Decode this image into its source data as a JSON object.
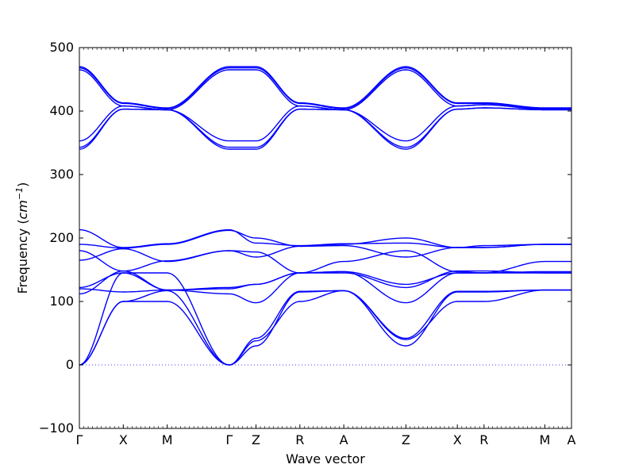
{
  "chart_data": {
    "type": "line",
    "title": "",
    "xlabel": "Wave vector",
    "ylabel_prefix": "Frequency (",
    "ylabel_unit_base": "cm",
    "ylabel_unit_exp": "−1",
    "ylabel_suffix": ")",
    "ylim": [
      -100,
      500
    ],
    "yticks": [
      -100,
      0,
      100,
      200,
      300,
      400,
      500
    ],
    "ytick_labels": [
      "−100",
      "0",
      "100",
      "200",
      "300",
      "400",
      "500"
    ],
    "qpoints": [
      {
        "label": "Γ",
        "x": 0.0
      },
      {
        "label": "X",
        "x": 0.5
      },
      {
        "label": "M",
        "x": 1.0
      },
      {
        "label": "Γ",
        "x": 1.707
      },
      {
        "label": "Z",
        "x": 2.011
      },
      {
        "label": "R",
        "x": 2.511
      },
      {
        "label": "A",
        "x": 3.011
      },
      {
        "label": "Z",
        "x": 3.718
      },
      {
        "label": "X",
        "x": 4.304
      },
      {
        "label": "R",
        "x": 4.608
      },
      {
        "label": "M",
        "x": 5.3
      },
      {
        "label": "A",
        "x": 5.604
      }
    ],
    "zero_line": true,
    "series": [
      {
        "values": [
          0,
          100,
          100,
          0,
          38,
          100,
          117,
          40,
          100,
          100,
          118,
          118
        ]
      },
      {
        "values": [
          0,
          100,
          117,
          0,
          30,
          115,
          117,
          30,
          115,
          115,
          118,
          118
        ]
      },
      {
        "values": [
          0,
          145,
          145,
          0,
          42,
          116,
          117,
          42,
          116,
          116,
          118,
          118
        ]
      },
      {
        "values": [
          112,
          148,
          118,
          112,
          98,
          145,
          147,
          98,
          145,
          145,
          163,
          163
        ]
      },
      {
        "values": [
          122,
          145,
          118,
          122,
          127,
          145,
          147,
          127,
          145,
          145,
          145,
          145
        ]
      },
      {
        "values": [
          120,
          115,
          118,
          120,
          127,
          145,
          145,
          122,
          148,
          148,
          145,
          145
        ]
      },
      {
        "values": [
          165,
          183,
          163,
          180,
          178,
          145,
          163,
          180,
          147,
          145,
          147,
          147
        ]
      },
      {
        "values": [
          180,
          148,
          164,
          180,
          170,
          187,
          188,
          170,
          185,
          185,
          190,
          190
        ]
      },
      {
        "values": [
          190,
          184,
          190,
          212,
          200,
          187,
          190,
          200,
          185,
          185,
          190,
          190
        ]
      },
      {
        "values": [
          213,
          185,
          191,
          213,
          192,
          188,
          191,
          192,
          185,
          188,
          190,
          190
        ]
      },
      {
        "values": [
          340,
          403,
          402,
          340,
          340,
          403,
          402,
          340,
          403,
          405,
          402,
          402
        ]
      },
      {
        "values": [
          343,
          403,
          402,
          343,
          343,
          403,
          402,
          343,
          403,
          405,
          402,
          402
        ]
      },
      {
        "values": [
          353,
          408,
          402,
          353,
          353,
          408,
          402,
          353,
          408,
          410,
          403,
          403
        ]
      },
      {
        "values": [
          465,
          408,
          402,
          465,
          465,
          408,
          402,
          465,
          408,
          410,
          403,
          403
        ]
      },
      {
        "values": [
          468,
          412,
          404,
          468,
          468,
          412,
          404,
          468,
          412,
          412,
          404,
          404
        ]
      },
      {
        "values": [
          470,
          413,
          405,
          470,
          470,
          413,
          405,
          470,
          413,
          413,
          405,
          405
        ]
      }
    ]
  }
}
